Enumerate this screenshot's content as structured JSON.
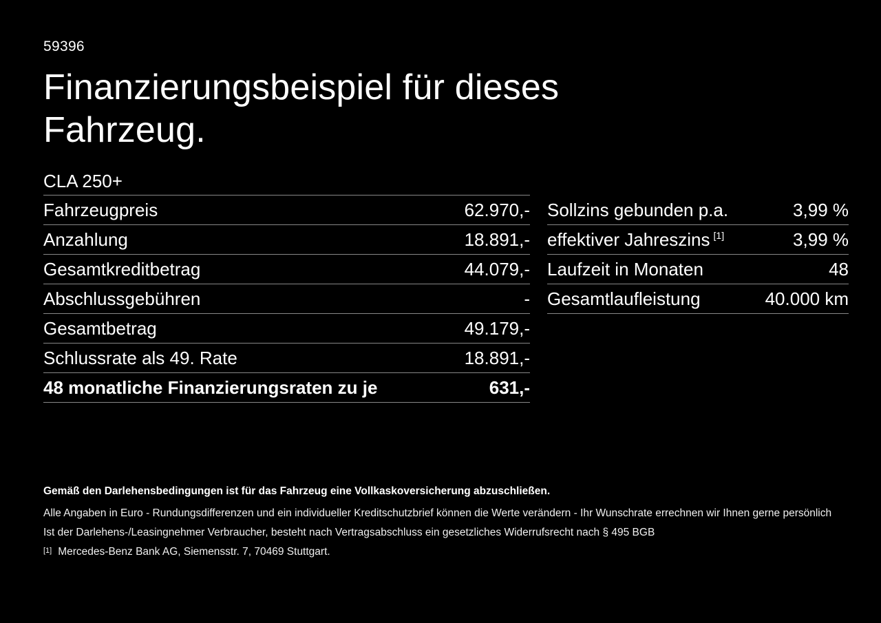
{
  "page": {
    "listing_id": "59396",
    "title": "Finanzierungsbeispiel für dieses Fahrzeug.",
    "vehicle_model": "CLA 250+"
  },
  "tables": {
    "left": {
      "header": "CLA 250+",
      "rows": [
        {
          "label": "Fahrzeugpreis",
          "value": "62.970,-"
        },
        {
          "label": "Anzahlung",
          "value": "18.891,-"
        },
        {
          "label": "Gesamtkreditbetrag",
          "value": "44.079,-"
        },
        {
          "label": "Abschlussgebühren",
          "value": "-"
        },
        {
          "label": "Gesamtbetrag",
          "value": "49.179,-"
        },
        {
          "label": "Schlussrate als 49. Rate",
          "value": "18.891,-"
        },
        {
          "label": "48 monatliche Finanzierungsraten zu je",
          "value": "631,-",
          "bold": true
        }
      ]
    },
    "right": {
      "rows": [
        {
          "label": "Sollzins gebunden p.a.",
          "value": "3,99 %"
        },
        {
          "label": "effektiver Jahreszins",
          "sup": "[1]",
          "value": "3,99 %"
        },
        {
          "label": "Laufzeit in Monaten",
          "value": "48"
        },
        {
          "label": "Gesamtlaufleistung",
          "value": "40.000 km"
        }
      ]
    }
  },
  "footer": {
    "insurance_note": "Gemäß den Darlehensbedingungen ist für das Fahrzeug eine Vollkaskoversicherung abzuschließen.",
    "disclaimer_note": "Alle Angaben in Euro - Rundungsdifferenzen und ein individueller Kreditschutzbrief können die Werte verändern - Ihr Wunschrate errechnen wir Ihnen gerne persönlich",
    "withdrawal_note": "Ist der Darlehens-/Leasingnehmer Verbraucher, besteht nach Vertragsabschluss ein gesetzliches Widerrufsrecht nach § 495 BGB",
    "footnote_marker": "[1]",
    "footnote_text": "Mercedes-Benz Bank AG, Siemensstr. 7, 70469 Stuttgart."
  },
  "colors": {
    "background": "#000000",
    "text": "#ffffff",
    "divider": "#888888"
  }
}
